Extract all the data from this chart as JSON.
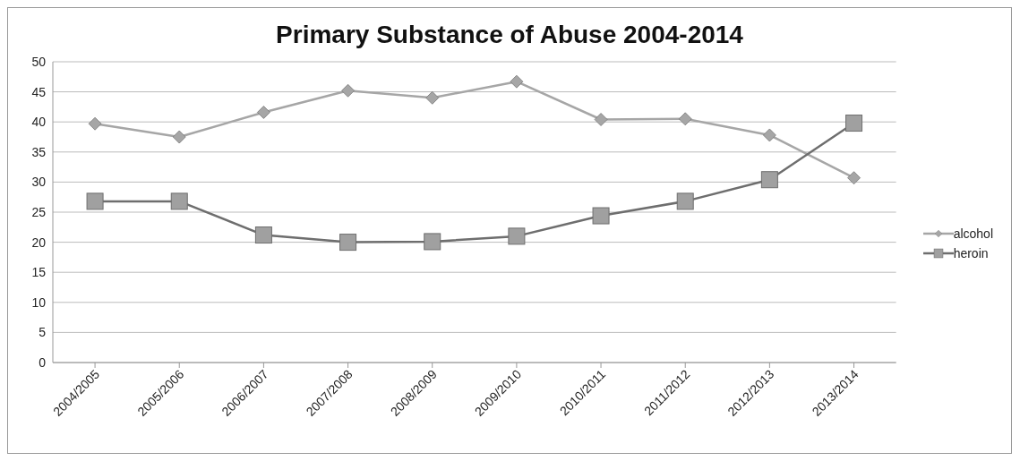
{
  "chart_data": {
    "type": "line",
    "title": "Primary Substance of Abuse 2004-2014",
    "categories": [
      "2004/2005",
      "2005/2006",
      "2006/2007",
      "2007/2008",
      "2008/2009",
      "2009/2010",
      "2010/2011",
      "2011/2012",
      "2012/2013",
      "2013/2014"
    ],
    "series": [
      {
        "name": "alcohol",
        "color": "#a6a6a6",
        "marker": "diamond",
        "values": [
          39.7,
          37.5,
          41.6,
          45.2,
          44.0,
          46.7,
          40.4,
          40.5,
          37.8,
          30.7
        ]
      },
      {
        "name": "heroin",
        "color": "#6e6e6e",
        "marker": "square",
        "values": [
          26.8,
          26.8,
          21.2,
          20.0,
          20.1,
          21.0,
          24.4,
          26.8,
          30.4,
          39.8
        ]
      }
    ],
    "ylim": [
      0,
      50
    ],
    "yticks": [
      0,
      5,
      10,
      15,
      20,
      25,
      30,
      35,
      40,
      45,
      50
    ],
    "grid": "y",
    "legend": "right",
    "line_style": "solid"
  }
}
